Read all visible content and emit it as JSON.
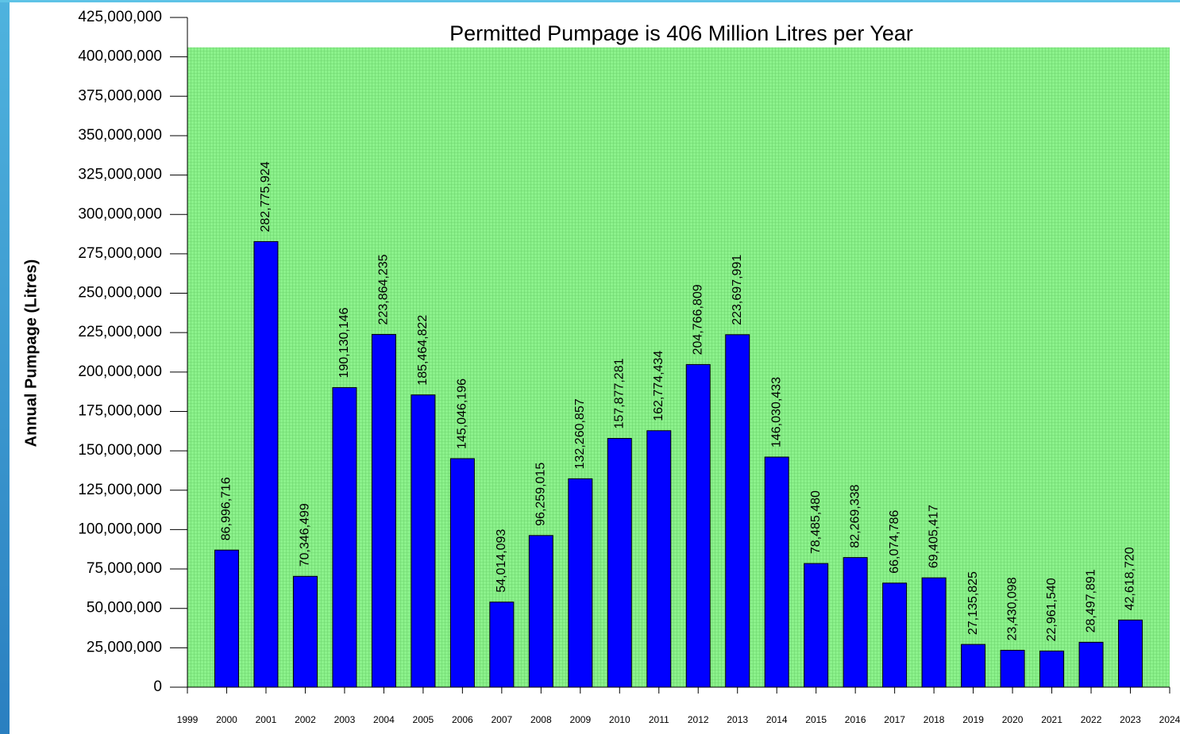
{
  "chart_data": {
    "type": "bar",
    "title": "Permitted Pumpage is 406 Million Litres per Year",
    "y_label": "Annual Pumpage (Litres)",
    "limit": 406000000,
    "color": "#0000ff",
    "limit_color": "#8cf28c",
    "x": [
      2000,
      2001,
      2002,
      2003,
      2004,
      2005,
      2006,
      2007,
      2008,
      2009,
      2010,
      2011,
      2012,
      2013,
      2014,
      2015,
      2016,
      2017,
      2018,
      2019,
      2020,
      2021,
      2022,
      2023
    ],
    "values": [
      86996716,
      282775924,
      70346499,
      190130146,
      223864235,
      185464822,
      145046196,
      54014093,
      96259015,
      132260857,
      157877281,
      162774434,
      204766809,
      223697991,
      146030433,
      78485480,
      82269338,
      66074786,
      69405417,
      27135825,
      23430098,
      22961540,
      28497891,
      42618720
    ],
    "value_labels": [
      "86,996,716",
      "282,775,924",
      "70,346,499",
      "190,130,146",
      "223,864,235",
      "185,464,822",
      "145,046,196",
      "54,014,093",
      "96,259,015",
      "132,260,857",
      "157,877,281",
      "162,774,434",
      "204,766,809",
      "223,697,991",
      "146,030,433",
      "78,485,480",
      "82,269,338",
      "66,074,786",
      "69,405,417",
      "27,135,825",
      "23,430,098",
      "22,961,540",
      "28,497,891",
      "42,618,720"
    ],
    "xlim": [
      1999,
      2024
    ],
    "xticks": [
      1999,
      2000,
      2001,
      2002,
      2003,
      2004,
      2005,
      2006,
      2007,
      2008,
      2009,
      2010,
      2011,
      2012,
      2013,
      2014,
      2015,
      2016,
      2017,
      2018,
      2019,
      2020,
      2021,
      2022,
      2023,
      2024
    ],
    "ylim": [
      0,
      425000000
    ],
    "yticks": [
      0,
      {
        "value": 25000000,
        "label": "25,000,000"
      },
      {
        "value": 50000000,
        "label": "50,000,000"
      },
      {
        "value": 75000000,
        "label": "75,000,000"
      },
      {
        "value": 100000000,
        "label": "100,000,000"
      },
      {
        "value": 125000000,
        "label": "125,000,000"
      },
      {
        "value": 150000000,
        "label": "150,000,000"
      },
      {
        "value": 175000000,
        "label": "175,000,000"
      },
      {
        "value": 200000000,
        "label": "200,000,000"
      },
      {
        "value": 225000000,
        "label": "225,000,000"
      },
      {
        "value": 250000000,
        "label": "250,000,000"
      },
      {
        "value": 275000000,
        "label": "275,000,000"
      },
      {
        "value": 300000000,
        "label": "300,000,000"
      },
      {
        "value": 325000000,
        "label": "325,000,000"
      },
      {
        "value": 350000000,
        "label": "350,000,000"
      },
      {
        "value": 375000000,
        "label": "375,000,000"
      },
      {
        "value": 400000000,
        "label": "400,000,000"
      },
      {
        "value": 425000000,
        "label": "425,000,000"
      }
    ]
  }
}
